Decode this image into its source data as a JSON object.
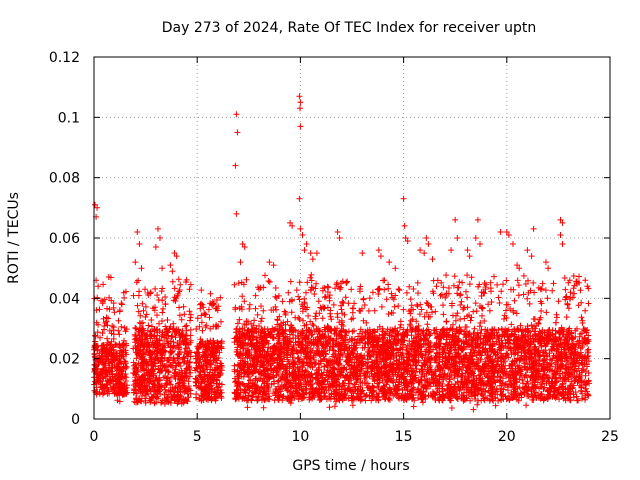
{
  "chart_data": {
    "type": "scatter",
    "title": "Day 273 of 2024, Rate Of TEC Index for receiver uptn",
    "xlabel": "GPS time / hours",
    "ylabel": "ROTI / TECUs",
    "xlim": [
      0,
      25
    ],
    "ylim": [
      0,
      0.12
    ],
    "x_ticks": [
      "0",
      "5",
      "10",
      "15",
      "20",
      "25"
    ],
    "y_ticks": [
      "0",
      "0.02",
      "0.04",
      "0.06",
      "0.08",
      "0.1",
      "0.12"
    ],
    "grid": true,
    "marker": "plus",
    "color": "#ff0000",
    "series": [
      {
        "name": "ROTI",
        "density_profile": {
          "segments": [
            {
              "x_start": 0.0,
              "x_end": 1.6,
              "base_low": 0.008,
              "base_high": 0.025
            },
            {
              "x_start": 1.9,
              "x_end": 4.7,
              "base_low": 0.005,
              "base_high": 0.03
            },
            {
              "x_start": 4.9,
              "x_end": 6.2,
              "base_low": 0.006,
              "base_high": 0.026
            },
            {
              "x_start": 6.8,
              "x_end": 24.0,
              "base_low": 0.006,
              "base_high": 0.03
            }
          ]
        },
        "outliers": [
          [
            0.05,
            0.071
          ],
          [
            0.15,
            0.07
          ],
          [
            0.1,
            0.067
          ],
          [
            0.1,
            0.046
          ],
          [
            0.2,
            0.044
          ],
          [
            2.1,
            0.062
          ],
          [
            2.2,
            0.058
          ],
          [
            2.0,
            0.052
          ],
          [
            2.3,
            0.05
          ],
          [
            3.1,
            0.063
          ],
          [
            3.2,
            0.06
          ],
          [
            3.0,
            0.057
          ],
          [
            3.3,
            0.05
          ],
          [
            3.7,
            0.051
          ],
          [
            3.8,
            0.049
          ],
          [
            3.9,
            0.055
          ],
          [
            4.0,
            0.054
          ],
          [
            5.8,
            0.038
          ],
          [
            6.0,
            0.036
          ],
          [
            6.9,
            0.101
          ],
          [
            6.95,
            0.095
          ],
          [
            6.85,
            0.084
          ],
          [
            6.9,
            0.068
          ],
          [
            7.2,
            0.058
          ],
          [
            7.3,
            0.057
          ],
          [
            7.1,
            0.052
          ],
          [
            8.5,
            0.052
          ],
          [
            8.7,
            0.051
          ],
          [
            9.5,
            0.065
          ],
          [
            9.6,
            0.064
          ],
          [
            9.95,
            0.107
          ],
          [
            10.0,
            0.105
          ],
          [
            9.98,
            0.103
          ],
          [
            10.0,
            0.097
          ],
          [
            9.95,
            0.073
          ],
          [
            10.0,
            0.063
          ],
          [
            10.1,
            0.061
          ],
          [
            10.3,
            0.058
          ],
          [
            10.2,
            0.056
          ],
          [
            10.5,
            0.055
          ],
          [
            10.8,
            0.055
          ],
          [
            10.6,
            0.053
          ],
          [
            11.8,
            0.062
          ],
          [
            11.9,
            0.06
          ],
          [
            13.0,
            0.055
          ],
          [
            13.8,
            0.056
          ],
          [
            13.9,
            0.054
          ],
          [
            14.3,
            0.052
          ],
          [
            14.6,
            0.05
          ],
          [
            15.0,
            0.073
          ],
          [
            15.05,
            0.064
          ],
          [
            15.1,
            0.06
          ],
          [
            15.2,
            0.059
          ],
          [
            15.8,
            0.056
          ],
          [
            16.0,
            0.055
          ],
          [
            16.1,
            0.06
          ],
          [
            16.2,
            0.058
          ],
          [
            16.4,
            0.053
          ],
          [
            17.5,
            0.066
          ],
          [
            17.6,
            0.06
          ],
          [
            17.3,
            0.056
          ],
          [
            18.1,
            0.056
          ],
          [
            18.2,
            0.054
          ],
          [
            18.6,
            0.066
          ],
          [
            18.5,
            0.06
          ],
          [
            18.7,
            0.058
          ],
          [
            19.7,
            0.062
          ],
          [
            20.0,
            0.062
          ],
          [
            20.1,
            0.061
          ],
          [
            20.3,
            0.058
          ],
          [
            20.5,
            0.051
          ],
          [
            20.6,
            0.05
          ],
          [
            21.3,
            0.063
          ],
          [
            21.0,
            0.056
          ],
          [
            21.2,
            0.054
          ],
          [
            21.9,
            0.052
          ],
          [
            22.0,
            0.05
          ],
          [
            22.6,
            0.066
          ],
          [
            22.7,
            0.065
          ],
          [
            22.6,
            0.061
          ],
          [
            22.7,
            0.058
          ],
          [
            23.8,
            0.046
          ],
          [
            23.9,
            0.044
          ]
        ]
      }
    ]
  }
}
